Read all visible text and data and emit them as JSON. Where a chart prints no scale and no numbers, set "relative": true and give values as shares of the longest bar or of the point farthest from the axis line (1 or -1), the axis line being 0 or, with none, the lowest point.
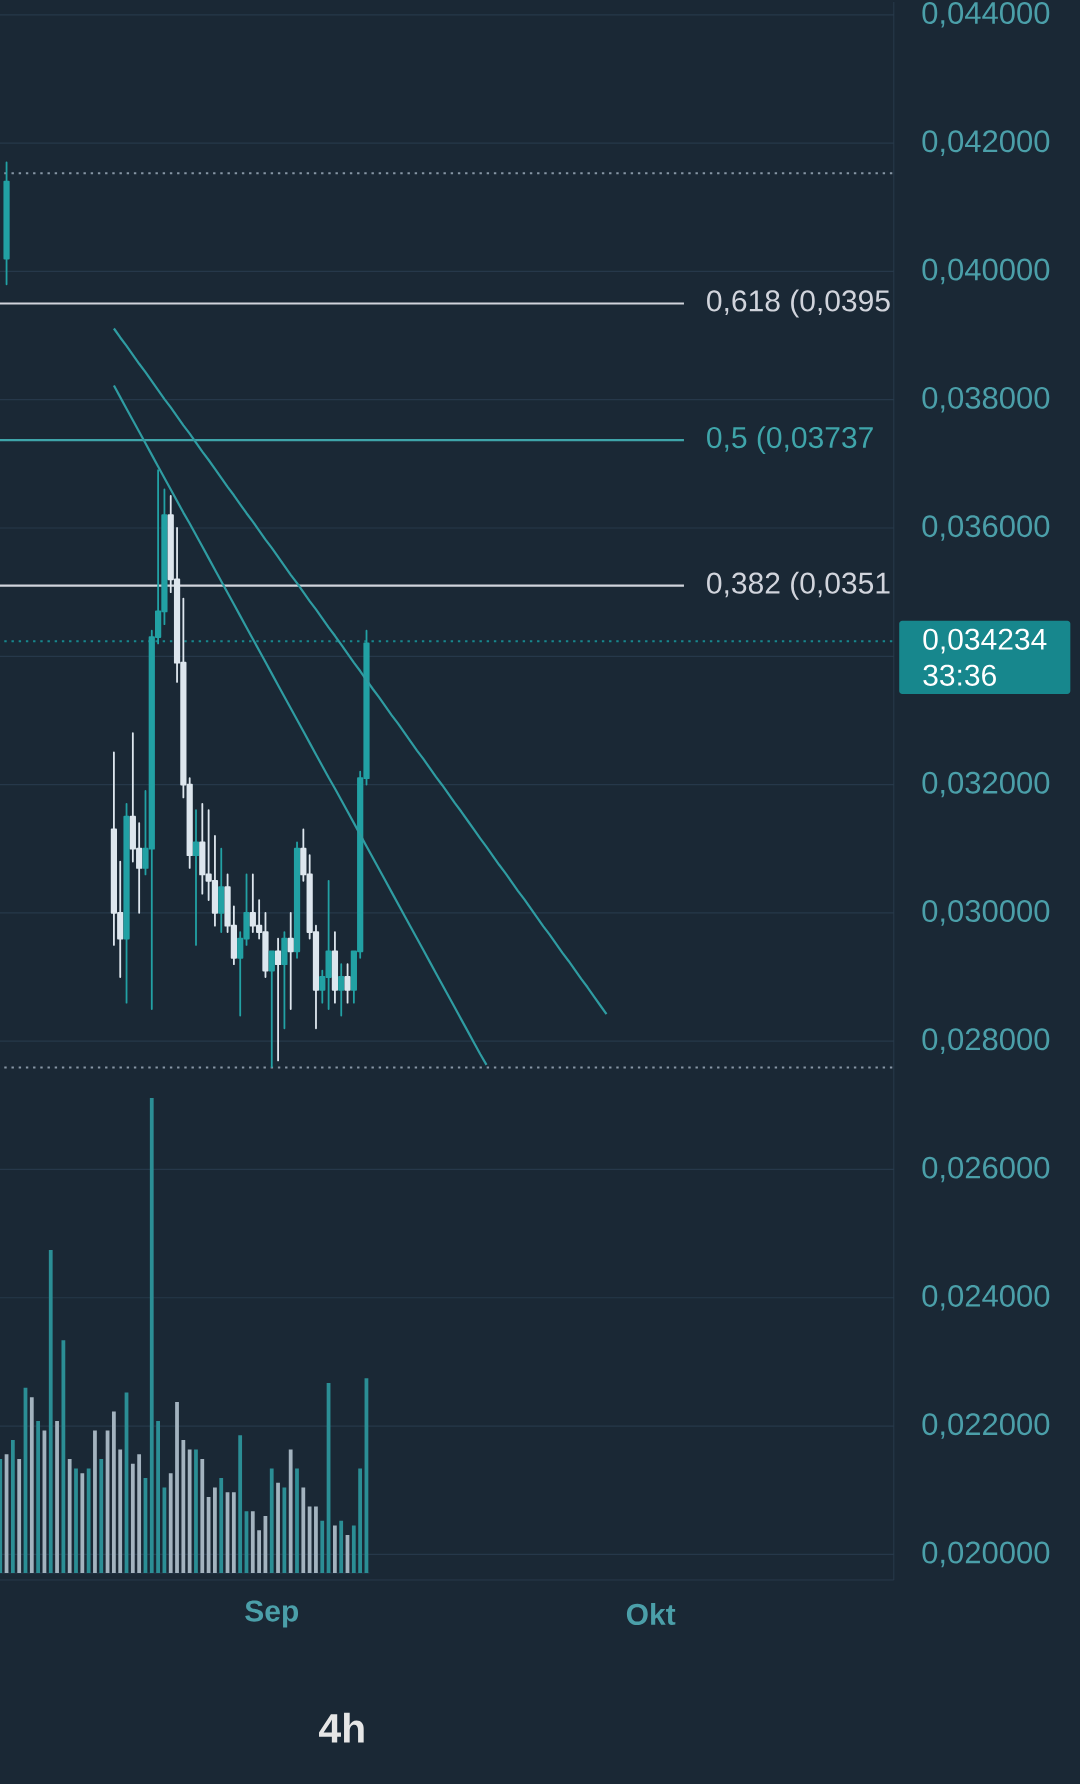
{
  "chart_data": [
    {
      "type": "candlestick",
      "categories": [
        null,
        null,
        null,
        null,
        null,
        null,
        null,
        null,
        null,
        null,
        null,
        null,
        null,
        null,
        null,
        null,
        null,
        null,
        null,
        null,
        null,
        null,
        null,
        null,
        null,
        null,
        null,
        null,
        null,
        null,
        null,
        null,
        null,
        null,
        null,
        null,
        null,
        null,
        null,
        null,
        null,
        null,
        null,
        "Sep",
        null,
        null,
        null,
        null,
        null,
        null,
        null,
        null,
        null,
        null,
        null,
        null,
        null,
        null,
        null,
        null,
        null,
        null,
        null,
        null,
        null,
        null,
        null,
        null,
        null,
        null,
        null,
        null,
        null,
        null,
        null,
        null,
        null,
        null,
        null,
        null,
        null,
        null,
        null,
        null,
        null,
        null,
        null,
        null,
        null,
        null,
        null,
        null,
        null,
        null,
        null,
        null,
        null,
        null,
        null,
        null,
        null,
        null,
        null,
        "Okt",
        null,
        null,
        null,
        null,
        null,
        null,
        null,
        null,
        null,
        null,
        null,
        null,
        null,
        null,
        null,
        null,
        null,
        null,
        null,
        null,
        null,
        null,
        null,
        null,
        null,
        null,
        null,
        null,
        null,
        null,
        null,
        null,
        null,
        null,
        null,
        null,
        null,
        null
      ],
      "ylim": [
        0.0196,
        0.0442
      ],
      "yticks": [
        {
          "value": 0.02,
          "label": "0,020000"
        },
        {
          "value": 0.022,
          "label": "0,022000"
        },
        {
          "value": 0.024,
          "label": "0,024000"
        },
        {
          "value": 0.026,
          "label": "0,026000"
        },
        {
          "value": 0.028,
          "label": "0,028000"
        },
        {
          "value": 0.03,
          "label": "0,030000"
        },
        {
          "value": 0.032,
          "label": "0,032000"
        },
        {
          "value": 0.034,
          "label": null
        },
        {
          "value": 0.036,
          "label": "0,036000"
        },
        {
          "value": 0.038,
          "label": "0,038000"
        },
        {
          "value": 0.04,
          "label": "0,040000"
        },
        {
          "value": 0.042,
          "label": "0,042000"
        },
        {
          "value": 0.044,
          "label": "0,044000"
        }
      ],
      "grid": "y",
      "series": [
        {
          "type": "candlestick",
          "ohlc": [
            null,
            [
              0.0402,
              0.0417,
              0.0398,
              0.0414
            ],
            null,
            null,
            null,
            null,
            null,
            null,
            null,
            null,
            null,
            null,
            null,
            null,
            null,
            null,
            null,
            null,
            [
              0.0313,
              0.0325,
              0.0295,
              0.03
            ],
            [
              0.03,
              0.0308,
              0.029,
              0.0296
            ],
            [
              0.0296,
              0.0317,
              0.0286,
              0.0315
            ],
            [
              0.0315,
              0.0328,
              0.0308,
              0.031
            ],
            [
              0.031,
              0.0314,
              0.03,
              0.0307
            ],
            [
              0.0307,
              0.0319,
              0.0306,
              0.031
            ],
            [
              0.031,
              0.0344,
              0.0285,
              0.0343
            ],
            [
              0.0343,
              0.0369,
              0.0342,
              0.0347
            ],
            [
              0.0347,
              0.0366,
              0.0345,
              0.0362
            ],
            [
              0.0362,
              0.0365,
              0.035,
              0.0352
            ],
            [
              0.0352,
              0.036,
              0.0336,
              0.0339
            ],
            [
              0.0339,
              0.0349,
              0.0318,
              0.032
            ],
            [
              0.032,
              0.0321,
              0.0307,
              0.0309
            ],
            [
              0.0309,
              0.0316,
              0.0295,
              0.0311
            ],
            [
              0.0311,
              0.0317,
              0.0303,
              0.0306
            ],
            [
              0.0306,
              0.0316,
              0.0302,
              0.0305
            ],
            [
              0.0305,
              0.0312,
              0.0298,
              0.03
            ],
            [
              0.03,
              0.031,
              0.0297,
              0.0304
            ],
            [
              0.0304,
              0.0306,
              0.0297,
              0.0298
            ],
            [
              0.0298,
              0.0301,
              0.0292,
              0.0293
            ],
            [
              0.0293,
              0.0297,
              0.0284,
              0.0296
            ],
            [
              0.0296,
              0.0306,
              0.0295,
              0.03
            ],
            [
              0.03,
              0.0306,
              0.0297,
              0.0298
            ],
            [
              0.0298,
              0.0302,
              0.0296,
              0.0297
            ],
            [
              0.0297,
              0.03,
              0.029,
              0.0291
            ],
            [
              0.0291,
              0.0294,
              0.0276,
              0.0294
            ],
            [
              0.0294,
              0.0296,
              0.0277,
              0.0292
            ],
            [
              0.0292,
              0.0297,
              0.0282,
              0.0296
            ],
            [
              0.0296,
              0.03,
              0.0285,
              0.0294
            ],
            [
              0.0294,
              0.0311,
              0.0293,
              0.031
            ],
            [
              0.031,
              0.0313,
              0.0305,
              0.0306
            ],
            [
              0.0306,
              0.0309,
              0.0296,
              0.0297
            ],
            [
              0.0297,
              0.0298,
              0.0282,
              0.0288
            ],
            [
              0.0288,
              0.0291,
              0.0286,
              0.029
            ],
            [
              0.029,
              0.0305,
              0.0285,
              0.0294
            ],
            [
              0.0294,
              0.0297,
              0.0286,
              0.0288
            ],
            [
              0.0288,
              0.0292,
              0.0284,
              0.029
            ],
            [
              0.029,
              0.0292,
              0.0286,
              0.0288
            ],
            [
              0.0288,
              0.0294,
              0.0286,
              0.0294
            ],
            [
              0.0294,
              0.0322,
              0.0293,
              0.0321
            ],
            [
              0.0321,
              0.0344,
              0.032,
              0.0342
            ],
            null,
            null,
            null,
            null,
            null,
            null,
            null,
            null,
            null,
            null,
            null,
            null,
            null,
            null,
            null,
            null,
            null,
            null,
            null,
            null,
            null,
            null,
            null,
            null,
            null,
            null,
            null,
            null,
            null,
            null,
            null,
            null,
            null,
            null,
            null,
            null,
            null,
            null,
            null,
            null,
            null,
            null,
            null,
            null,
            null,
            null,
            null,
            null,
            null,
            null,
            null,
            null,
            null,
            null,
            null,
            null,
            null,
            null,
            null,
            null,
            null,
            null,
            null,
            null,
            null,
            null,
            null,
            null,
            null,
            null,
            null,
            null,
            null,
            null,
            null,
            null,
            null,
            null,
            null,
            null,
            null,
            null,
            null
          ],
          "colors": [
            null,
            "#22a1a4",
            null,
            null,
            null,
            null,
            null,
            null,
            null,
            null,
            null,
            null,
            null,
            null,
            null,
            null,
            null,
            null,
            "#dde6ee",
            "#dde6ee",
            "#22a1a4",
            "#dde6ee",
            "#dde6ee",
            "#22a1a4",
            "#22a1a4",
            "#22a1a4",
            "#22a1a4",
            "#dde6ee",
            "#dde6ee",
            "#dde6ee",
            "#dde6ee",
            "#22a1a4",
            "#dde6ee",
            "#dde6ee",
            "#dde6ee",
            "#22a1a4",
            "#dde6ee",
            "#dde6ee",
            "#22a1a4",
            "#22a1a4",
            "#dde6ee",
            "#dde6ee",
            "#dde6ee",
            "#22a1a4",
            "#dde6ee",
            "#22a1a4",
            "#dde6ee",
            "#22a1a4",
            "#dde6ee",
            "#dde6ee",
            "#dde6ee",
            "#22a1a4",
            "#22a1a4",
            "#dde6ee",
            "#22a1a4",
            "#dde6ee",
            "#22a1a4",
            "#22a1a4",
            "#22a1a4",
            null,
            null,
            null,
            null,
            null,
            null,
            null,
            null,
            null,
            null,
            null,
            null,
            null,
            null,
            null,
            null,
            null,
            null,
            null,
            null,
            null,
            null,
            null,
            null,
            null,
            null,
            null,
            null,
            null,
            null,
            null,
            null,
            null,
            null,
            null,
            null,
            null,
            null,
            null,
            null,
            null,
            null,
            null,
            null,
            null,
            null,
            null,
            null,
            null,
            null,
            null,
            null,
            null,
            null,
            null,
            null,
            null,
            null,
            null,
            null,
            null,
            null,
            null,
            null,
            null,
            null,
            null,
            null,
            null,
            null,
            null,
            null,
            null,
            null,
            null,
            null,
            null,
            null,
            null,
            null,
            null,
            null,
            null
          ]
        },
        {
          "type": "line",
          "color": "#2f9ca2",
          "values": [
            null,
            null,
            null,
            null,
            null,
            null,
            null,
            null,
            null,
            null,
            null,
            null,
            null,
            null,
            null,
            null,
            null,
            null,
            0.03911,
            0.03897,
            0.03884,
            0.0387,
            0.03856,
            0.03843,
            0.03829,
            0.03815,
            0.03801,
            0.03788,
            0.03774,
            0.0376,
            0.03747,
            0.03733,
            0.03719,
            0.03706,
            0.03692,
            0.03678,
            0.03664,
            0.03651,
            0.03637,
            0.03623,
            0.0361,
            0.03596,
            0.03582,
            0.03569,
            0.03555,
            0.03541,
            0.03527,
            0.03514,
            0.035,
            0.03486,
            0.03473,
            0.03459,
            0.03445,
            0.03432,
            0.03418,
            0.03404,
            0.0339,
            0.03377,
            0.03363,
            0.03349,
            0.03336,
            0.03322,
            0.03308,
            0.03295,
            0.03281,
            0.03267,
            0.03253,
            0.0324,
            0.03226,
            0.03212,
            0.03199,
            0.03185,
            0.03171,
            0.03158,
            0.03144,
            0.0313,
            0.03116,
            0.03103,
            0.03089,
            0.03075,
            0.03062,
            0.03048,
            0.03034,
            0.03021,
            0.03007,
            0.02993,
            0.02979,
            0.02966,
            0.02952,
            0.02938,
            0.02925,
            0.02911,
            0.02897,
            0.02884,
            0.0287,
            0.02856,
            0.02842,
            null,
            null,
            null,
            null,
            null,
            null,
            null,
            null,
            null,
            null,
            null,
            null,
            null,
            null,
            null,
            null,
            null,
            null,
            null,
            null,
            null,
            null,
            null,
            null,
            null,
            null,
            null,
            null,
            null,
            null,
            null,
            null,
            null,
            null,
            null,
            null,
            null,
            null,
            null,
            null,
            null,
            null,
            null,
            null,
            null
          ]
        },
        {
          "type": "line",
          "color": "#2f9ca2",
          "values": [
            null,
            null,
            null,
            null,
            null,
            null,
            null,
            null,
            null,
            null,
            null,
            null,
            null,
            null,
            null,
            null,
            null,
            null,
            0.03822,
            0.03804,
            0.03786,
            0.03768,
            0.0375,
            0.03732,
            0.03714,
            0.03696,
            0.03678,
            0.0366,
            0.03642,
            0.03624,
            0.03607,
            0.03589,
            0.03571,
            0.03553,
            0.03535,
            0.03517,
            0.03499,
            0.03481,
            0.03463,
            0.03445,
            0.03427,
            0.03409,
            0.03391,
            0.03373,
            0.03355,
            0.03337,
            0.03319,
            0.03301,
            0.03283,
            0.03265,
            0.03247,
            0.03229,
            0.03211,
            0.03194,
            0.03176,
            0.03158,
            0.0314,
            0.03122,
            0.03104,
            0.03086,
            0.03068,
            0.0305,
            0.03032,
            0.03014,
            0.02996,
            0.02978,
            0.0296,
            0.02942,
            0.02924,
            0.02906,
            0.02888,
            0.0287,
            0.02852,
            0.02834,
            0.02816,
            0.02798,
            0.0278,
            0.02763,
            null,
            null,
            null,
            null,
            null,
            null,
            null,
            null,
            null,
            null,
            null,
            null,
            null,
            null,
            null,
            null,
            null,
            null,
            null,
            null,
            null,
            null,
            null,
            null,
            null,
            null,
            null,
            null,
            null,
            null,
            null,
            null,
            null,
            null,
            null,
            null,
            null,
            null,
            null,
            null,
            null,
            null,
            null,
            null,
            null,
            null,
            null,
            null,
            null,
            null,
            null,
            null,
            null,
            null,
            null,
            null,
            null,
            null,
            null,
            null,
            null,
            null,
            null,
            null
          ]
        }
      ],
      "ref_lines": [
        {
          "axis": "y",
          "value": 0.04153,
          "line_style": "dotted",
          "color": "#8796a5"
        },
        {
          "axis": "y",
          "value": 0.0395,
          "label": "0,618 (0,0395",
          "color": "#d1d4dc"
        },
        {
          "axis": "y",
          "value": 0.03737,
          "label": "0,5 (0,03737",
          "color": "#3fa5aa"
        },
        {
          "axis": "y",
          "value": 0.0351,
          "label": "0,382 (0,0351",
          "color": "#d1d4dc"
        },
        {
          "axis": "y",
          "value": 0.034234,
          "label": "0,034234",
          "line_style": "dotted",
          "color": "#17878d"
        },
        {
          "axis": "y",
          "value": 0.02759,
          "line_style": "dotted",
          "color": "#8796a5"
        }
      ],
      "annotations": [
        "33:36",
        "4h"
      ]
    },
    {
      "type": "bar",
      "relative": true,
      "categories": [
        null,
        null,
        null,
        null,
        null,
        null,
        null,
        null,
        null,
        null,
        null,
        null,
        null,
        null,
        null,
        null,
        null,
        null,
        null,
        null,
        null,
        null,
        null,
        null,
        null,
        null,
        null,
        null,
        null,
        null,
        null,
        null,
        null,
        null,
        null,
        null,
        null,
        null,
        null,
        null,
        null,
        null,
        null,
        null,
        null,
        null,
        null,
        null,
        null,
        null,
        null,
        null,
        null,
        null,
        null,
        null,
        null,
        null,
        null
      ],
      "values": [
        0.24,
        0.25,
        0.28,
        0.24,
        0.39,
        0.37,
        0.32,
        0.3,
        0.68,
        0.32,
        0.49,
        0.24,
        0.22,
        0.21,
        0.22,
        0.3,
        0.24,
        0.3,
        0.34,
        0.26,
        0.38,
        0.23,
        0.25,
        0.2,
        1.0,
        0.32,
        0.18,
        0.21,
        0.36,
        0.28,
        0.26,
        0.26,
        0.24,
        0.16,
        0.18,
        0.2,
        0.17,
        0.17,
        0.29,
        0.13,
        0.13,
        0.09,
        0.12,
        0.22,
        0.19,
        0.18,
        0.26,
        0.22,
        0.18,
        0.14,
        0.14,
        0.11,
        0.4,
        0.1,
        0.11,
        0.08,
        0.1,
        0.22,
        0.41
      ],
      "colors": [
        "#2b8e95",
        "#a3b3bf",
        "#2b8e95",
        "#a3b3bf",
        "#2b8e95",
        "#a3b3bf",
        "#2b8e95",
        "#a3b3bf",
        "#2b8e95",
        "#a3b3bf",
        "#2b8e95",
        "#a3b3bf",
        "#2b8e95",
        "#a3b3bf",
        "#2b8e95",
        "#a3b3bf",
        "#2b8e95",
        "#a3b3bf",
        "#a3b3bf",
        "#a3b3bf",
        "#2b8e95",
        "#a3b3bf",
        "#a3b3bf",
        "#2b8e95",
        "#2b8e95",
        "#2b8e95",
        "#2b8e95",
        "#a3b3bf",
        "#a3b3bf",
        "#a3b3bf",
        "#a3b3bf",
        "#2b8e95",
        "#a3b3bf",
        "#a3b3bf",
        "#a3b3bf",
        "#2b8e95",
        "#a3b3bf",
        "#a3b3bf",
        "#2b8e95",
        "#2b8e95",
        "#a3b3bf",
        "#a3b3bf",
        "#a3b3bf",
        "#2b8e95",
        "#a3b3bf",
        "#2b8e95",
        "#a3b3bf",
        "#2b8e95",
        "#a3b3bf",
        "#a3b3bf",
        "#a3b3bf",
        "#2b8e95",
        "#2b8e95",
        "#a3b3bf",
        "#2b8e95",
        "#a3b3bf",
        "#2b8e95",
        "#2b8e95",
        "#2b8e95"
      ]
    }
  ]
}
